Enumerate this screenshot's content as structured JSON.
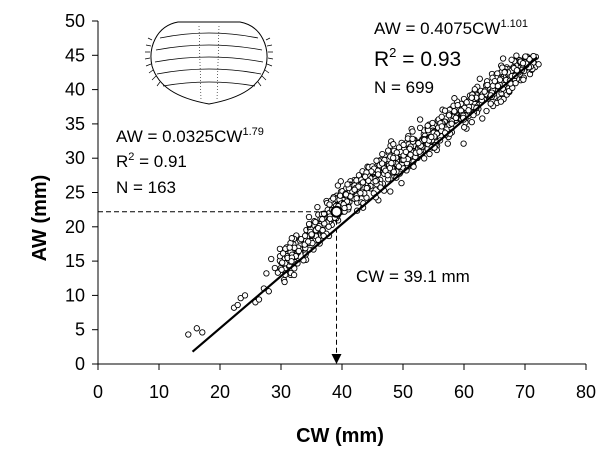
{
  "chart_data": {
    "type": "scatter",
    "xlabel": "CW (mm)",
    "ylabel": "AW (mm)",
    "xlim": [
      0,
      80
    ],
    "ylim": [
      0,
      50
    ],
    "xticks": [
      "0",
      "10",
      "20",
      "30",
      "40",
      "50",
      "60",
      "70",
      "80"
    ],
    "yticks": [
      "0",
      "5",
      "10",
      "15",
      "20",
      "25",
      "30",
      "35",
      "40",
      "45",
      "50"
    ],
    "grid": false,
    "legend": "none",
    "fit_line": {
      "x_start": 15.5,
      "y_start": 1.8,
      "x_end": 72,
      "y_end": 44.7
    },
    "breakpoint": {
      "x": 39.1,
      "y": 22.2
    },
    "series": [
      {
        "style": "open-circles",
        "point_count_shown": 862,
        "sample_points": [
          [
            14.8,
            4.3
          ],
          [
            16.2,
            5.2
          ],
          [
            17.1,
            4.6
          ],
          [
            22.3,
            8.2
          ],
          [
            22.9,
            8.6
          ],
          [
            23.4,
            9.6
          ],
          [
            24.1,
            10.0
          ],
          [
            25.8,
            9.0
          ],
          [
            26.4,
            9.4
          ],
          [
            27.2,
            11.0
          ],
          [
            28.0,
            10.6
          ],
          [
            27.6,
            13.2
          ],
          [
            28.4,
            15.3
          ],
          [
            29.0,
            14.0
          ],
          [
            30.2,
            14.8
          ]
        ]
      }
    ],
    "annotations": [
      {
        "key": "upper",
        "equation_prefix": "AW = 0.4075CW",
        "equation_exponent": "1.101",
        "r2_prefix": "R",
        "r2_sup": "2",
        "r2_value": " = 0.93",
        "n": "N = 699"
      },
      {
        "key": "lower",
        "equation_prefix": "AW = 0.0325CW",
        "equation_exponent": "1.79",
        "r2_prefix": "R",
        "r2_sup": "2",
        "r2_value": " = 0.91",
        "n": "N = 163"
      },
      {
        "key": "cw",
        "text": "CW = 39.1 mm"
      }
    ]
  }
}
